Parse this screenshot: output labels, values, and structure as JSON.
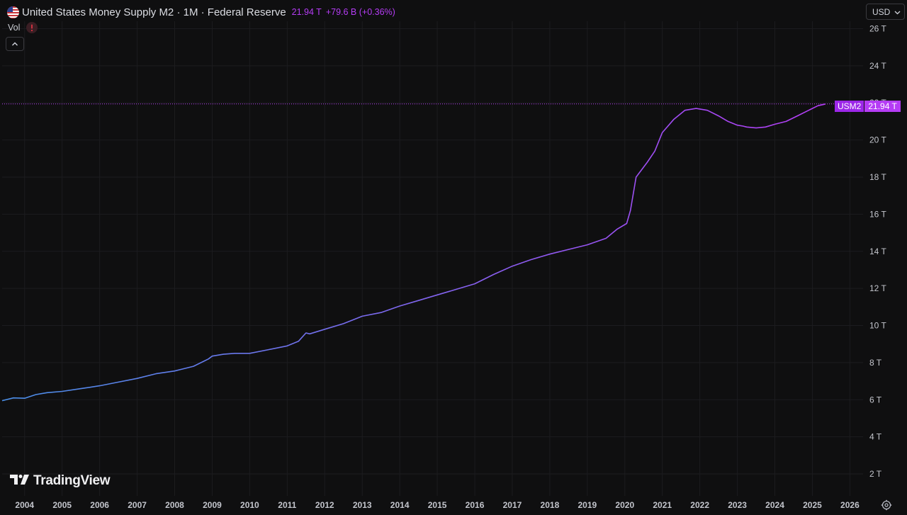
{
  "header": {
    "title": "United States Money Supply M2 · 1M · Federal Reserve",
    "last_value": "21.94 T",
    "change": "+79.6 B (+0.36%)"
  },
  "volume": {
    "label": "Vol"
  },
  "currency": {
    "label": "USD"
  },
  "brand": {
    "name": "TradingView"
  },
  "price_label": {
    "symbol": "USM2",
    "value": "21.94 T"
  },
  "colors": {
    "background": "#0f0f10",
    "line_start": "#4a8fe8",
    "line_end": "#b53cf5",
    "accent": "#b53cf5",
    "grid": "#1c1c1f"
  },
  "icons": [
    "us-flag-icon",
    "warning-icon",
    "chevron-up-icon",
    "chevron-down-icon",
    "tradingview-logo-icon",
    "settings-icon"
  ],
  "chart_data": {
    "type": "line",
    "title": "United States Money Supply M2",
    "xlabel": "",
    "ylabel": "",
    "ylim": [
      1.2,
      26.4
    ],
    "xlim": [
      2003.4,
      2026.2
    ],
    "grid": true,
    "y_ticks": [
      2,
      4,
      6,
      8,
      10,
      12,
      14,
      16,
      18,
      20,
      22,
      24,
      26
    ],
    "y_tick_labels": [
      "2 T",
      "4 T",
      "6 T",
      "8 T",
      "10 T",
      "12 T",
      "14 T",
      "16 T",
      "18 T",
      "20 T",
      "22 T",
      "24 T",
      "26 T"
    ],
    "x_ticks": [
      2004,
      2005,
      2006,
      2007,
      2008,
      2009,
      2010,
      2011,
      2012,
      2013,
      2014,
      2015,
      2016,
      2017,
      2018,
      2019,
      2020,
      2021,
      2022,
      2023,
      2024,
      2025,
      2026
    ],
    "x_tick_labels": [
      "2004",
      "2005",
      "2006",
      "2007",
      "2008",
      "2009",
      "2010",
      "2011",
      "2012",
      "2013",
      "2014",
      "2015",
      "2016",
      "2017",
      "2018",
      "2019",
      "2020",
      "2021",
      "2022",
      "2023",
      "2024",
      "2025",
      "2026"
    ],
    "series": [
      {
        "name": "USM2",
        "x": [
          2003.4,
          2003.7,
          2004.0,
          2004.3,
          2004.6,
          2005.0,
          2005.5,
          2006.0,
          2006.5,
          2007.0,
          2007.5,
          2008.0,
          2008.5,
          2008.9,
          2009.0,
          2009.3,
          2009.6,
          2010.0,
          2010.5,
          2011.0,
          2011.3,
          2011.5,
          2011.6,
          2012.0,
          2012.5,
          2013.0,
          2013.5,
          2014.0,
          2014.5,
          2015.0,
          2015.5,
          2016.0,
          2016.5,
          2017.0,
          2017.5,
          2018.0,
          2018.5,
          2019.0,
          2019.5,
          2019.8,
          2020.05,
          2020.15,
          2020.3,
          2020.45,
          2020.6,
          2020.8,
          2021.0,
          2021.3,
          2021.6,
          2021.9,
          2022.2,
          2022.5,
          2022.75,
          2023.0,
          2023.15,
          2023.25,
          2023.5,
          2023.75,
          2024.0,
          2024.3,
          2024.6,
          2024.9,
          2025.15,
          2025.35
        ],
        "values": [
          5.95,
          6.1,
          6.08,
          6.28,
          6.38,
          6.45,
          6.6,
          6.75,
          6.95,
          7.15,
          7.4,
          7.55,
          7.8,
          8.2,
          8.35,
          8.45,
          8.5,
          8.5,
          8.7,
          8.9,
          9.15,
          9.6,
          9.55,
          9.8,
          10.1,
          10.5,
          10.7,
          11.05,
          11.35,
          11.65,
          11.95,
          12.25,
          12.75,
          13.2,
          13.55,
          13.85,
          14.1,
          14.35,
          14.7,
          15.2,
          15.5,
          16.2,
          18.0,
          18.4,
          18.8,
          19.4,
          20.4,
          21.1,
          21.6,
          21.7,
          21.6,
          21.3,
          21.0,
          20.8,
          20.75,
          20.7,
          20.65,
          20.7,
          20.85,
          21.0,
          21.3,
          21.6,
          21.85,
          21.94
        ]
      }
    ]
  }
}
